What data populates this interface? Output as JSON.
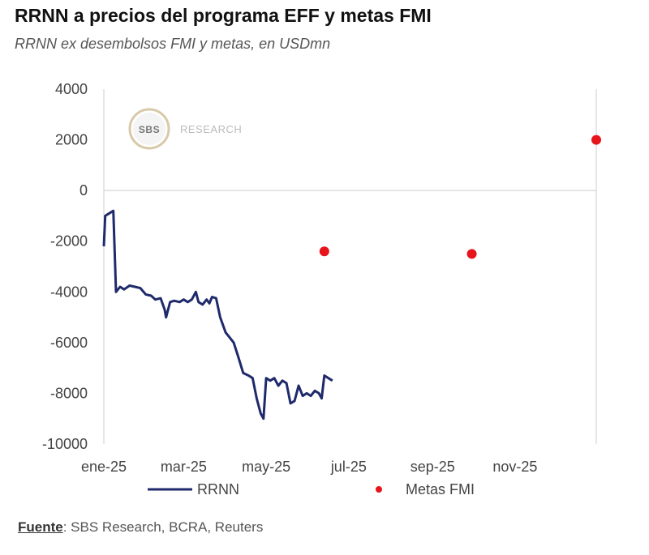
{
  "header": {
    "title": "RRNN a precios del programa EFF y metas FMI",
    "subtitle": "RRNN ex desembolsos FMI y metas, en USDmn"
  },
  "watermark": {
    "logo_text": "SBS",
    "text": "RESEARCH"
  },
  "footer": {
    "source_label": "Fuente",
    "source_text": ": SBS Research, BCRA, Reuters"
  },
  "colors": {
    "rrnn_line": "#1f2a6b",
    "metas_points": "#e8141c",
    "axis": "#cccccc",
    "text": "#444444"
  },
  "chart_data": {
    "type": "line",
    "title": "RRNN a precios del programa EFF y metas FMI",
    "subtitle": "RRNN ex desembolsos FMI y metas, en USDmn",
    "xlabel": "",
    "ylabel": "",
    "ylim": [
      -10000,
      4000
    ],
    "yticks": [
      4000,
      2000,
      0,
      -2000,
      -4000,
      -6000,
      -8000,
      -10000
    ],
    "xlim": [
      "2025-01-01",
      "2025-12-31"
    ],
    "xticks": [
      {
        "date": "2025-01-01",
        "label": "ene-25"
      },
      {
        "date": "2025-03-01",
        "label": "mar-25"
      },
      {
        "date": "2025-05-01",
        "label": "may-25"
      },
      {
        "date": "2025-07-01",
        "label": "jul-25"
      },
      {
        "date": "2025-09-01",
        "label": "sep-25"
      },
      {
        "date": "2025-11-01",
        "label": "nov-25"
      }
    ],
    "grid": false,
    "legend": "bottom",
    "series": [
      {
        "name": "RRNN",
        "kind": "line",
        "points": [
          [
            "2025-01-01",
            -2200
          ],
          [
            "2025-01-02",
            -1000
          ],
          [
            "2025-01-05",
            -900
          ],
          [
            "2025-01-08",
            -800
          ],
          [
            "2025-01-10",
            -4000
          ],
          [
            "2025-01-13",
            -3800
          ],
          [
            "2025-01-16",
            -3900
          ],
          [
            "2025-01-20",
            -3750
          ],
          [
            "2025-01-24",
            -3800
          ],
          [
            "2025-01-28",
            -3850
          ],
          [
            "2025-02-01",
            -4100
          ],
          [
            "2025-02-05",
            -4150
          ],
          [
            "2025-02-08",
            -4300
          ],
          [
            "2025-02-12",
            -4250
          ],
          [
            "2025-02-15",
            -4700
          ],
          [
            "2025-02-16",
            -5000
          ],
          [
            "2025-02-19",
            -4400
          ],
          [
            "2025-02-22",
            -4350
          ],
          [
            "2025-02-26",
            -4400
          ],
          [
            "2025-03-01",
            -4300
          ],
          [
            "2025-03-04",
            -4400
          ],
          [
            "2025-03-07",
            -4300
          ],
          [
            "2025-03-10",
            -4000
          ],
          [
            "2025-03-12",
            -4400
          ],
          [
            "2025-03-15",
            -4500
          ],
          [
            "2025-03-18",
            -4300
          ],
          [
            "2025-03-20",
            -4450
          ],
          [
            "2025-03-22",
            -4200
          ],
          [
            "2025-03-25",
            -4250
          ],
          [
            "2025-03-28",
            -5000
          ],
          [
            "2025-04-01",
            -5600
          ],
          [
            "2025-04-04",
            -5800
          ],
          [
            "2025-04-07",
            -6000
          ],
          [
            "2025-04-10",
            -6500
          ],
          [
            "2025-04-14",
            -7200
          ],
          [
            "2025-04-18",
            -7300
          ],
          [
            "2025-04-21",
            -7400
          ],
          [
            "2025-04-24",
            -8200
          ],
          [
            "2025-04-27",
            -8800
          ],
          [
            "2025-04-29",
            -9000
          ],
          [
            "2025-05-01",
            -7400
          ],
          [
            "2025-05-04",
            -7500
          ],
          [
            "2025-05-07",
            -7400
          ],
          [
            "2025-05-10",
            -7700
          ],
          [
            "2025-05-13",
            -7500
          ],
          [
            "2025-05-16",
            -7600
          ],
          [
            "2025-05-19",
            -8400
          ],
          [
            "2025-05-22",
            -8300
          ],
          [
            "2025-05-25",
            -7700
          ],
          [
            "2025-05-28",
            -8100
          ],
          [
            "2025-05-31",
            -8000
          ],
          [
            "2025-06-03",
            -8100
          ],
          [
            "2025-06-06",
            -7900
          ],
          [
            "2025-06-09",
            -8000
          ],
          [
            "2025-06-11",
            -8200
          ],
          [
            "2025-06-13",
            -7300
          ],
          [
            "2025-06-16",
            -7400
          ],
          [
            "2025-06-19",
            -7500
          ]
        ]
      },
      {
        "name": "Metas FMI",
        "kind": "scatter",
        "points": [
          [
            "2025-06-13",
            -2400
          ],
          [
            "2025-09-30",
            -2500
          ],
          [
            "2025-12-31",
            2000
          ]
        ]
      }
    ]
  }
}
